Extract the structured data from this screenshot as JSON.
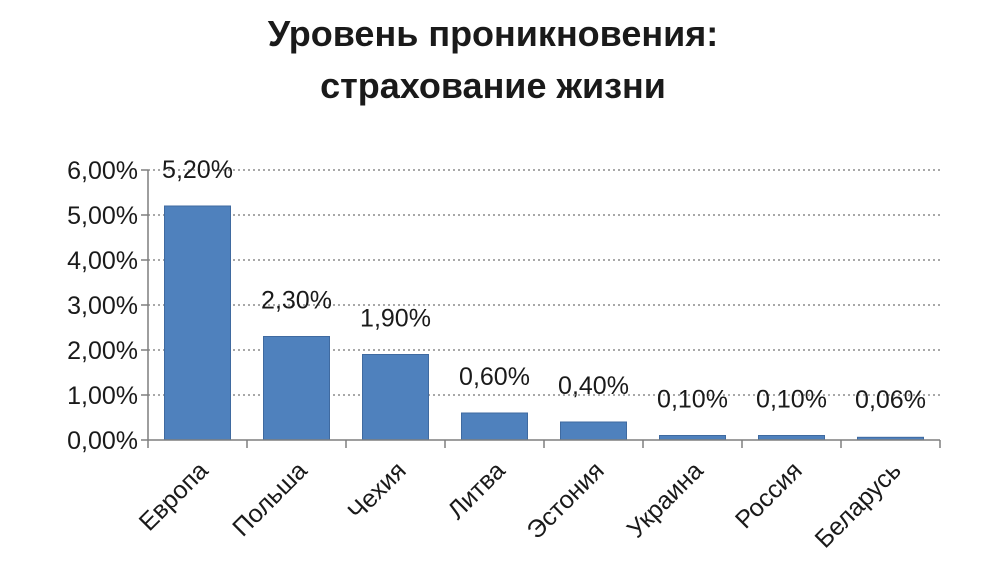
{
  "title_lines": [
    "Уровень проникновения:",
    "страхование жизни"
  ],
  "chart_data": {
    "type": "bar",
    "title": "Уровень проникновения: страхование жизни",
    "categories": [
      "Европа",
      "Польша",
      "Чехия",
      "Литва",
      "Эстония",
      "Украина",
      "Россия",
      "Беларусь"
    ],
    "values": [
      5.2,
      2.3,
      1.9,
      0.6,
      0.4,
      0.1,
      0.1,
      0.06
    ],
    "data_labels": [
      "5,20%",
      "2,30%",
      "1,90%",
      "0,60%",
      "0,40%",
      "0,10%",
      "0,10%",
      "0,06%"
    ],
    "y_ticks": [
      0,
      1,
      2,
      3,
      4,
      5,
      6
    ],
    "y_tick_labels": [
      "0,00%",
      "1,00%",
      "2,00%",
      "3,00%",
      "4,00%",
      "5,00%",
      "6,00%"
    ],
    "ylim": [
      0,
      6
    ],
    "xlabel": "",
    "ylabel": "",
    "grid": true,
    "legend": "none",
    "bar_color": "#4f81bd",
    "bar_edge_color": "#3f6aa0",
    "grid_color": "#8c8c8c"
  }
}
